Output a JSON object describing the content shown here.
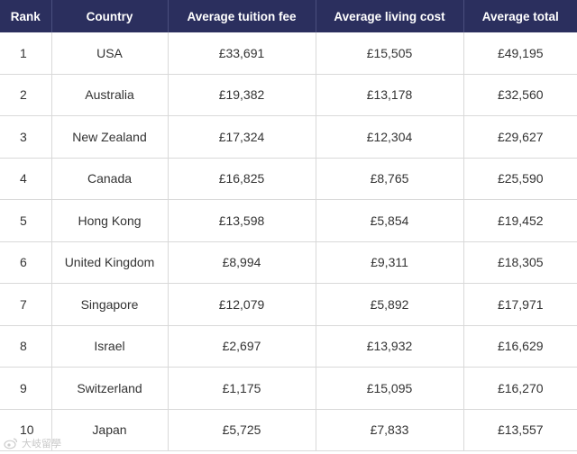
{
  "table": {
    "headers": [
      "Rank",
      "Country",
      "Average tuition fee",
      "Average living cost",
      "Average total"
    ],
    "rows": [
      {
        "rank": "1",
        "country": "USA",
        "tuition": "£33,691",
        "living": "£15,505",
        "total": "£49,195"
      },
      {
        "rank": "2",
        "country": "Australia",
        "tuition": "£19,382",
        "living": "£13,178",
        "total": "£32,560"
      },
      {
        "rank": "3",
        "country": "New Zealand",
        "tuition": "£17,324",
        "living": "£12,304",
        "total": "£29,627"
      },
      {
        "rank": "4",
        "country": "Canada",
        "tuition": "£16,825",
        "living": "£8,765",
        "total": "£25,590"
      },
      {
        "rank": "5",
        "country": "Hong Kong",
        "tuition": "£13,598",
        "living": "£5,854",
        "total": "£19,452"
      },
      {
        "rank": "6",
        "country": "United Kingdom",
        "tuition": "£8,994",
        "living": "£9,311",
        "total": "£18,305"
      },
      {
        "rank": "7",
        "country": "Singapore",
        "tuition": "£12,079",
        "living": "£5,892",
        "total": "£17,971"
      },
      {
        "rank": "8",
        "country": "Israel",
        "tuition": "£2,697",
        "living": "£13,932",
        "total": "£16,629"
      },
      {
        "rank": "9",
        "country": "Switzerland",
        "tuition": "£1,175",
        "living": "£15,095",
        "total": "£16,270"
      },
      {
        "rank": "10",
        "country": "Japan",
        "tuition": "£5,725",
        "living": "£7,833",
        "total": "£13,557"
      }
    ]
  },
  "watermark": {
    "icon": "weibo-icon",
    "text": "大岐留學"
  }
}
